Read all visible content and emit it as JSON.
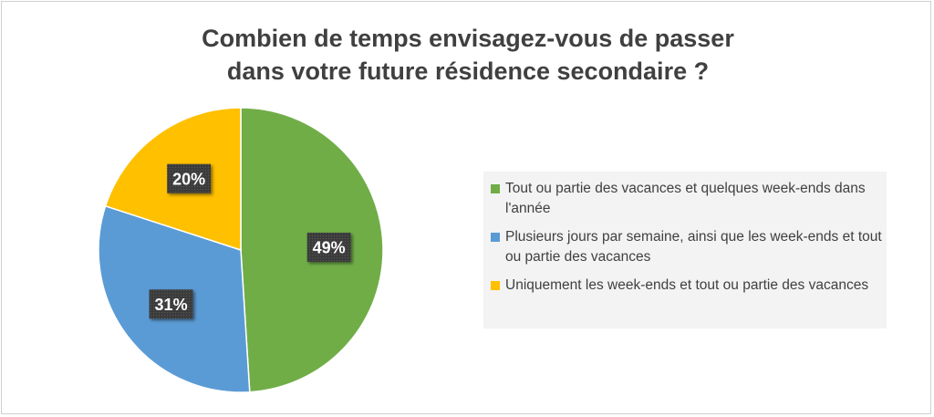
{
  "chart_data": {
    "type": "pie",
    "title_lines": [
      "Combien de temps envisagez-vous de passer",
      "dans votre future résidence secondaire ?"
    ],
    "slices": [
      {
        "label": "Tout ou partie des vacances et quelques week-ends dans l'année",
        "value": 49,
        "display": "49%",
        "color": "#70ad47"
      },
      {
        "label": "Plusieurs jours par semaine, ainsi que les week-ends et tout ou partie des vacances",
        "value": 31,
        "display": "31%",
        "color": "#5b9bd5"
      },
      {
        "label": "Uniquement les week-ends et tout ou partie des vacances",
        "value": 20,
        "display": "20%",
        "color": "#ffc000"
      }
    ],
    "legend_position": "right"
  }
}
